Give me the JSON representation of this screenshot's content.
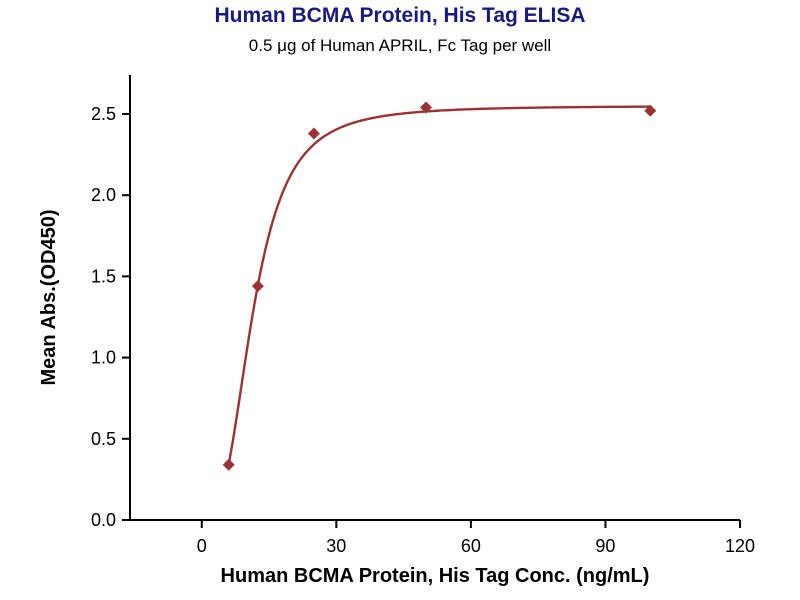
{
  "header": {
    "title": "Human BCMA Protein, His Tag ELISA",
    "subtitle": "0.5 μg of Human APRIL, Fc Tag per well"
  },
  "chart_data": {
    "type": "scatter",
    "title": "Human BCMA Protein, His Tag ELISA",
    "subtitle": "0.5 μg of Human APRIL, Fc Tag per well",
    "xlabel": "Human BCMA Protein, His Tag Conc. (ng/mL)",
    "ylabel": "Mean Abs.(OD450)",
    "x": [
      6,
      12.5,
      25,
      50,
      100
    ],
    "y": [
      0.34,
      1.44,
      2.38,
      2.54,
      2.52
    ],
    "xticks": [
      0,
      30,
      60,
      90,
      120
    ],
    "yticks": [
      0.0,
      0.5,
      1.0,
      1.5,
      2.0,
      2.5
    ],
    "xlim": [
      -16,
      120
    ],
    "ylim": [
      0,
      2.74
    ],
    "grid": false,
    "legend": null,
    "fit": {
      "model": "4PL",
      "a": 0,
      "b": 2.9,
      "c": 11.4,
      "d": 2.55,
      "x_start": 6,
      "x_end": 100
    },
    "colors": {
      "curve": "#9a3334",
      "marker": "#9a3334",
      "axis": "#000000",
      "tick_label": "#000000",
      "title": "#1a1a7e"
    }
  }
}
